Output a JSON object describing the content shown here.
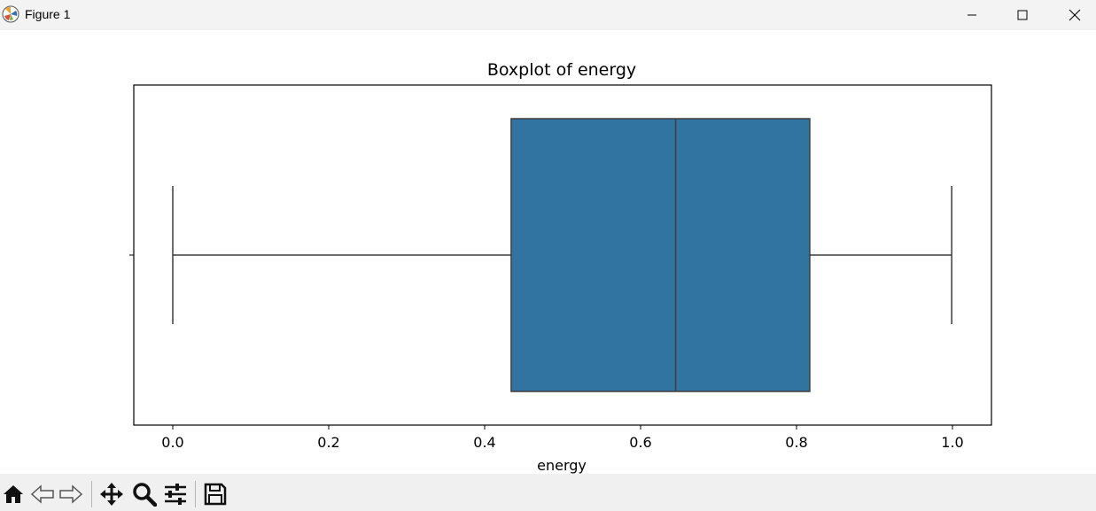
{
  "window": {
    "title": "Figure 1",
    "controls": [
      "minimize",
      "maximize",
      "close"
    ]
  },
  "toolbar": {
    "tools": [
      "home-icon",
      "back-icon",
      "forward-icon",
      "pan-icon",
      "zoom-icon",
      "configure-subplots-icon",
      "save-icon"
    ]
  },
  "colors": {
    "box_fill": "#3274a1",
    "line": "#3d3d3d"
  },
  "chart_data": {
    "type": "box",
    "title": "Boxplot of energy",
    "xlabel": "energy",
    "ylabel": "",
    "orientation": "horizontal",
    "xlim": [
      -0.05,
      1.05
    ],
    "xticks": [
      0.0,
      0.2,
      0.4,
      0.6,
      0.8,
      1.0
    ],
    "xtick_labels": [
      "0.0",
      "0.2",
      "0.4",
      "0.6",
      "0.8",
      "1.0"
    ],
    "box": {
      "whisker_low": 0.0,
      "q1": 0.434,
      "median": 0.645,
      "q3": 0.817,
      "whisker_high": 0.999
    }
  }
}
